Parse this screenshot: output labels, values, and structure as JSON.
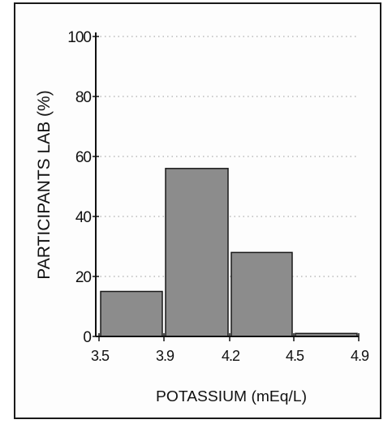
{
  "chart_data": {
    "type": "bar",
    "xlabel": "POTASSIUM  (mEq/L)",
    "ylabel": "PARTICIPANTS LAB (%)",
    "x_ticks": [
      "3.5",
      "3.9",
      "4.2",
      "4.5",
      "4.9"
    ],
    "bins": [
      {
        "from": "3.5",
        "to": "3.9",
        "value": 15
      },
      {
        "from": "3.9",
        "to": "4.2",
        "value": 56
      },
      {
        "from": "4.2",
        "to": "4.5",
        "value": 28
      },
      {
        "from": "4.5",
        "to": "4.9",
        "value": 1
      }
    ],
    "ylim": [
      0,
      100
    ],
    "y_ticks": [
      0,
      20,
      40,
      60,
      80,
      100
    ],
    "grid": "dotted horizontal",
    "bar_color": "#8c8c8c"
  }
}
